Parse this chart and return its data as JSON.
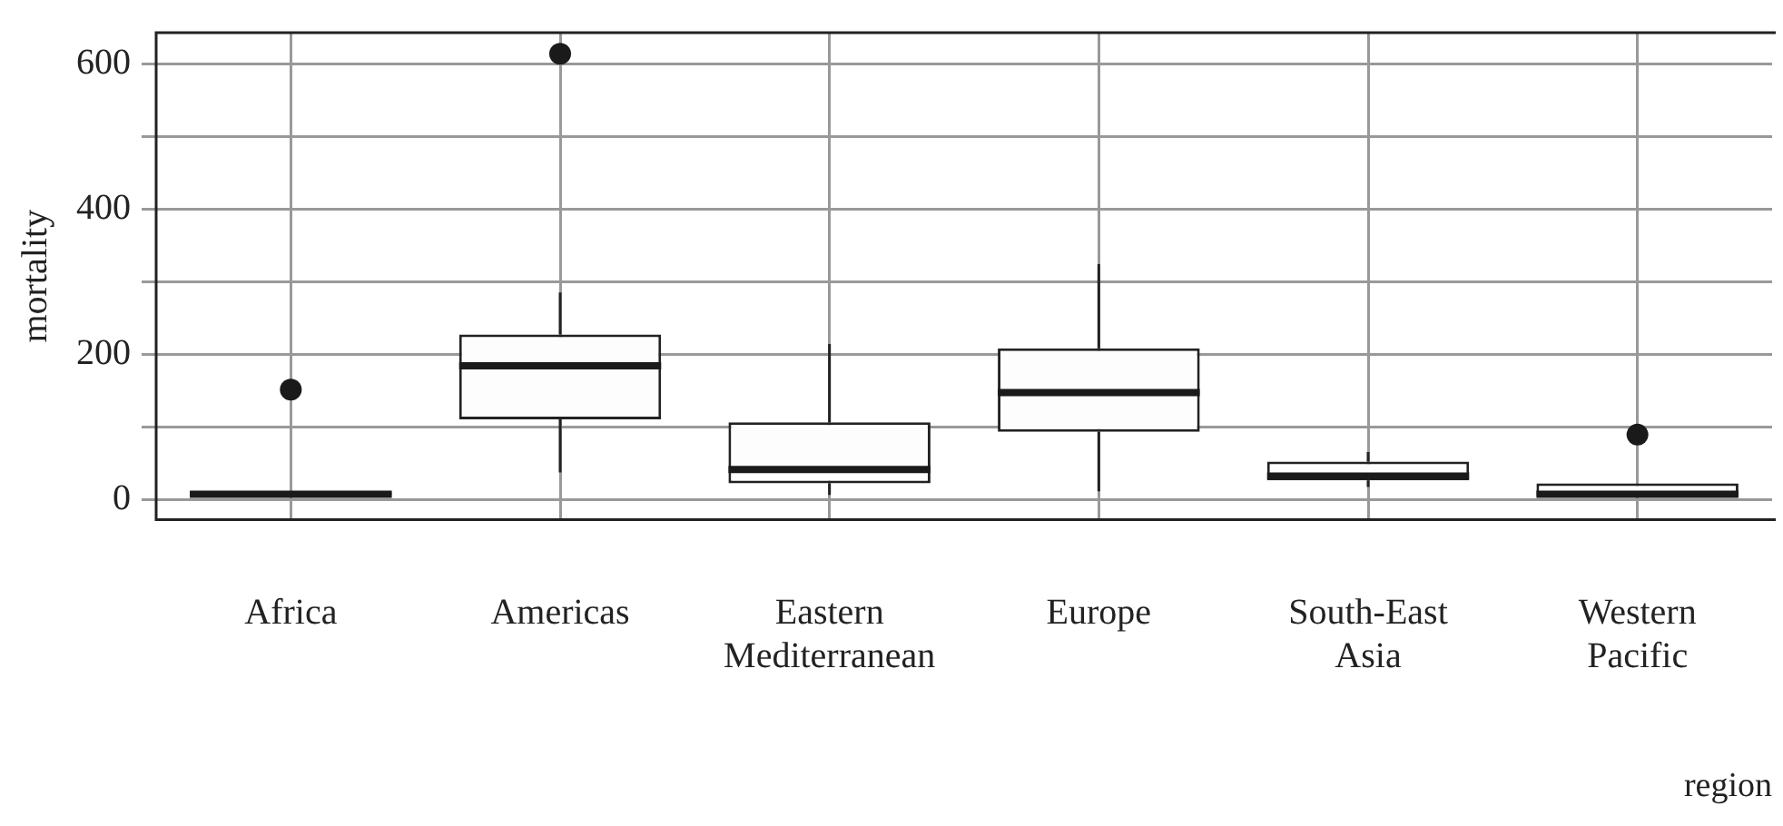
{
  "chart_data": {
    "type": "box",
    "xlabel": "region",
    "ylabel": "mortality",
    "categories": [
      "Africa",
      "Americas",
      "Eastern Mediterranean",
      "Europe",
      "South-East Asia",
      "Western Pacific"
    ],
    "boxes": [
      {
        "low": 4,
        "q1": 6,
        "median": 7,
        "q3": 9,
        "high": 10,
        "outliers": [
          151
        ]
      },
      {
        "low": 37,
        "q1": 110,
        "median": 184,
        "q3": 227,
        "high": 285,
        "outliers": [
          614
        ]
      },
      {
        "low": 6,
        "q1": 22,
        "median": 41,
        "q3": 106,
        "high": 214
      },
      {
        "low": 11,
        "q1": 93,
        "median": 147,
        "q3": 208,
        "high": 324
      },
      {
        "low": 17,
        "q1": 26,
        "median": 32,
        "q3": 52,
        "high": 65
      },
      {
        "low": 4,
        "q1": 4,
        "median": 7,
        "q3": 22,
        "high": 22,
        "outliers": [
          89
        ]
      }
    ],
    "ylim": [
      -28,
      643
    ],
    "yticks": [
      0,
      {
        "value": 100,
        "label": null
      },
      200,
      {
        "value": 300,
        "label": null
      },
      400,
      {
        "value": 500,
        "label": null
      },
      600
    ],
    "grid": true,
    "legend": false
  }
}
